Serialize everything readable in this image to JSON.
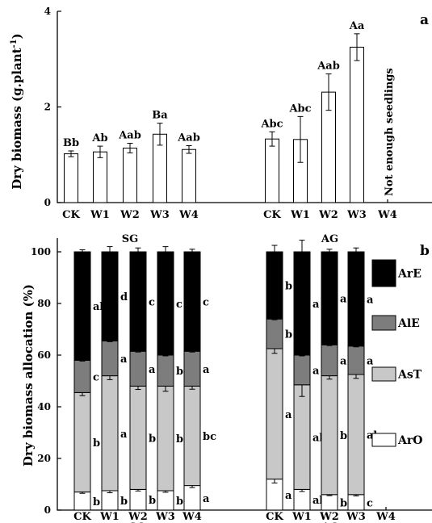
{
  "chart_data": [
    {
      "panel": "a",
      "type": "bar",
      "ylabel": "Dry biomass (g.plant-1)",
      "ylabel_main": "Dry biomass (g.plant",
      "ylabel_sup": "-1",
      "ylabel_tail": ")",
      "ylim": [
        0,
        4
      ],
      "yticks": [
        "0",
        "2",
        "4"
      ],
      "groups": [
        {
          "name": "SG",
          "categories": [
            "CK",
            "W1",
            "W2",
            "W3",
            "W4"
          ],
          "values": [
            1.02,
            1.06,
            1.14,
            1.43,
            1.11
          ],
          "errors": [
            0.06,
            0.12,
            0.1,
            0.23,
            0.08
          ],
          "letters": [
            "Bb",
            "Ab",
            "Aab",
            "Ba",
            "Aab"
          ]
        },
        {
          "name": "AG",
          "categories": [
            "CK",
            "W1",
            "W2",
            "W3",
            "W4"
          ],
          "values": [
            1.33,
            1.32,
            2.31,
            3.25,
            null
          ],
          "errors": [
            0.15,
            0.48,
            0.38,
            0.28,
            null
          ],
          "letters": [
            "Abc",
            "Abc",
            "Aab",
            "Aa",
            ""
          ]
        }
      ],
      "annotation": "Not enough seedlings"
    },
    {
      "panel": "b",
      "type": "stacked-bar",
      "ylabel": "Dry biomass allocation (%)",
      "ylim": [
        0,
        100
      ],
      "yticks": [
        "0",
        "20",
        "40",
        "60",
        "80",
        "100"
      ],
      "legend": [
        "ArE",
        "AlE",
        "AsT",
        "ArO"
      ],
      "colors": {
        "ArO": "#ffffff",
        "AsT": "#c8c8c8",
        "AlE": "#7d7d7d",
        "ArE": "#000000"
      },
      "groups": [
        {
          "name": "SG",
          "categories": [
            "CK",
            "W1",
            "W2",
            "W3",
            "W4"
          ],
          "series": [
            {
              "name": "ArO",
              "values": [
                7,
                7.5,
                8,
                7.5,
                9.5
              ],
              "errors": [
                0.5,
                0.8,
                0.6,
                0.6,
                0.8
              ],
              "letters": [
                "b",
                "b",
                "b",
                "b",
                "a"
              ]
            },
            {
              "name": "AsT",
              "values": [
                38.5,
                44.5,
                40,
                40.5,
                38.5
              ],
              "errors": [
                1.2,
                1.5,
                1.3,
                2.0,
                1.2
              ],
              "letters": [
                "b",
                "a",
                "b",
                "b",
                "bc"
              ]
            },
            {
              "name": "AlE",
              "values": [
                12.5,
                13.5,
                13.5,
                12,
                13.5
              ],
              "errors": [
                0.3,
                0.3,
                0.3,
                0.3,
                0.3
              ],
              "letters": [
                "c",
                "a",
                "a",
                "b",
                "a"
              ]
            },
            {
              "name": "ArE",
              "values": [
                42,
                34.5,
                38.5,
                40,
                38.5
              ],
              "errors": [
                0.8,
                2.0,
                1.5,
                2.0,
                1.0
              ],
              "letters": [
                "ab",
                "d",
                "c",
                "c",
                "c"
              ]
            }
          ]
        },
        {
          "name": "AG",
          "categories": [
            "CK",
            "W1",
            "W2",
            "W3",
            "W4"
          ],
          "series": [
            {
              "name": "ArO",
              "values": [
                12,
                8,
                6,
                6,
                null
              ],
              "errors": [
                1.5,
                0.8,
                0.4,
                0.5,
                null
              ],
              "letters": [
                "a",
                "ab",
                "bc",
                "c",
                ""
              ]
            },
            {
              "name": "AsT",
              "values": [
                50.5,
                40.5,
                46,
                46.5,
                null
              ],
              "errors": [
                1.8,
                4.5,
                1.3,
                1.5,
                null
              ],
              "letters": [
                "a",
                "ab",
                "b",
                "ab",
                ""
              ]
            },
            {
              "name": "AlE",
              "values": [
                11.5,
                11.5,
                12,
                11,
                null
              ],
              "errors": [
                0.3,
                0.3,
                0.3,
                0.3,
                null
              ],
              "letters": [
                "b",
                "a",
                "a",
                "a",
                ""
              ]
            },
            {
              "name": "ArE",
              "values": [
                26,
                40,
                36,
                36.5,
                null
              ],
              "errors": [
                2.5,
                4.5,
                1.0,
                1.5,
                null
              ],
              "letters": [
                "b",
                "a",
                "a",
                "a",
                ""
              ]
            }
          ]
        }
      ]
    }
  ]
}
